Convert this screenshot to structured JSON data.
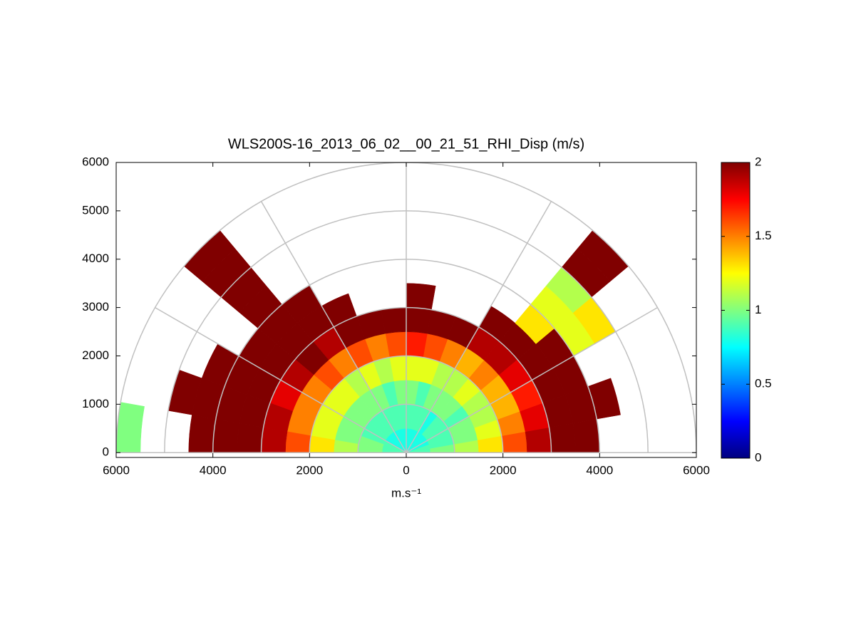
{
  "chart_data": {
    "type": "polar-heatmap",
    "title": "WLS200S-16_2013_06_02__00_21_51_RHI_Disp (m/s)",
    "xlabel": "m.s⁻¹",
    "xlim": [
      -6000,
      6000
    ],
    "ylim": [
      -100,
      6000
    ],
    "xticks": [
      {
        "value": -6000,
        "label": "6000"
      },
      {
        "value": -4000,
        "label": "4000"
      },
      {
        "value": -2000,
        "label": "2000"
      },
      0,
      2000,
      4000,
      6000
    ],
    "yticks": [
      0,
      1000,
      2000,
      3000,
      4000,
      5000,
      6000
    ],
    "rings": [
      1000,
      2000,
      3000,
      4000,
      5000,
      6000
    ],
    "spokes": [
      0,
      30,
      60,
      90,
      120,
      150,
      180
    ],
    "clim": [
      0,
      2
    ],
    "cticks": [
      0,
      0.5,
      1,
      1.5,
      2
    ],
    "colormap": "jet",
    "range_bins": [
      0,
      500,
      1000,
      1500,
      2000,
      2500,
      3000,
      3500,
      4000,
      4500,
      5000,
      5500,
      6000
    ],
    "angle_bins": [
      0,
      10,
      20,
      30,
      40,
      50,
      60,
      70,
      80,
      90,
      100,
      110,
      120,
      130,
      140,
      150,
      160,
      170,
      180
    ],
    "values": [
      [
        0.9,
        1.0,
        1.1,
        1.3,
        1.6,
        1.9,
        2,
        2,
        null,
        null,
        null,
        null
      ],
      [
        0.9,
        0.9,
        1.0,
        1.2,
        1.5,
        1.8,
        2,
        2,
        2,
        null,
        null,
        null
      ],
      [
        0.8,
        0.9,
        1.0,
        1.1,
        1.4,
        1.7,
        2,
        2,
        null,
        null,
        null,
        null
      ],
      [
        0.8,
        0.9,
        0.9,
        1.1,
        1.4,
        1.8,
        2,
        2,
        1.2,
        1.3,
        null,
        null
      ],
      [
        0.8,
        0.9,
        1.0,
        1.2,
        1.5,
        1.9,
        2,
        1.3,
        1.2,
        1.1,
        2,
        2
      ],
      [
        0.8,
        0.8,
        1.0,
        1.1,
        1.4,
        1.9,
        2,
        null,
        null,
        null,
        null,
        null
      ],
      [
        0.8,
        0.9,
        1.0,
        1.1,
        1.5,
        2,
        null,
        null,
        null,
        null,
        null,
        null
      ],
      [
        0.8,
        0.9,
        0.9,
        1.2,
        1.6,
        2,
        null,
        null,
        null,
        null,
        null,
        null
      ],
      [
        0.8,
        0.9,
        1.0,
        1.2,
        1.7,
        2,
        2,
        null,
        null,
        null,
        null,
        null
      ],
      [
        0.8,
        0.9,
        1.0,
        1.2,
        1.6,
        2,
        null,
        null,
        null,
        null,
        null,
        null
      ],
      [
        0.8,
        0.9,
        0.9,
        1.1,
        1.5,
        2,
        null,
        null,
        null,
        null,
        null,
        null
      ],
      [
        0.8,
        0.9,
        1.0,
        1.2,
        1.6,
        2,
        2,
        null,
        null,
        null,
        null,
        null
      ],
      [
        0.8,
        0.9,
        1.0,
        1.1,
        1.5,
        1.9,
        2,
        2,
        null,
        null,
        null,
        null
      ],
      [
        0.8,
        0.9,
        1.0,
        1.2,
        1.6,
        2,
        2,
        2,
        2,
        2,
        2,
        2
      ],
      [
        0.8,
        0.9,
        1.0,
        1.2,
        1.5,
        1.9,
        2,
        2,
        null,
        null,
        null,
        null
      ],
      [
        0.9,
        0.9,
        1.0,
        1.2,
        1.5,
        1.8,
        2,
        2,
        2,
        null,
        null,
        null
      ],
      [
        0.9,
        1.0,
        1.0,
        1.2,
        1.5,
        1.9,
        2,
        2,
        2,
        2,
        null,
        null
      ],
      [
        0.9,
        1.0,
        1.1,
        1.3,
        1.6,
        1.9,
        2,
        2,
        2,
        null,
        null,
        1.0
      ]
    ]
  }
}
